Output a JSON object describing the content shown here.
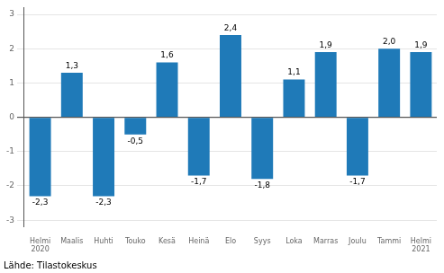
{
  "chart_data": {
    "type": "bar",
    "categories": [
      "Helmi\n2020",
      "Maalis",
      "Huhti",
      "Touko",
      "Kesä",
      "Heinä",
      "Elo",
      "Syys",
      "Loka",
      "Marras",
      "Joulu",
      "Tammi",
      "Helmi\n2021"
    ],
    "values": [
      -2.3,
      1.3,
      -2.3,
      -0.5,
      1.6,
      -1.7,
      2.4,
      -1.8,
      1.1,
      1.9,
      -1.7,
      2.0,
      1.9
    ],
    "value_labels": [
      "-2,3",
      "1,3",
      "-2,3",
      "-0,5",
      "1,6",
      "-1,7",
      "2,4",
      "-1,8",
      "1,1",
      "1,9",
      "-1,7",
      "2,0",
      "1,9"
    ],
    "data_labels": true,
    "color": "#1f7ab8",
    "ylim": [
      -3.2,
      3.2
    ],
    "yticks": [
      -3,
      -2,
      -1,
      0,
      1,
      2,
      3
    ],
    "grid": true,
    "annotations": [
      "Lähde: Tilastokeskus"
    ]
  }
}
